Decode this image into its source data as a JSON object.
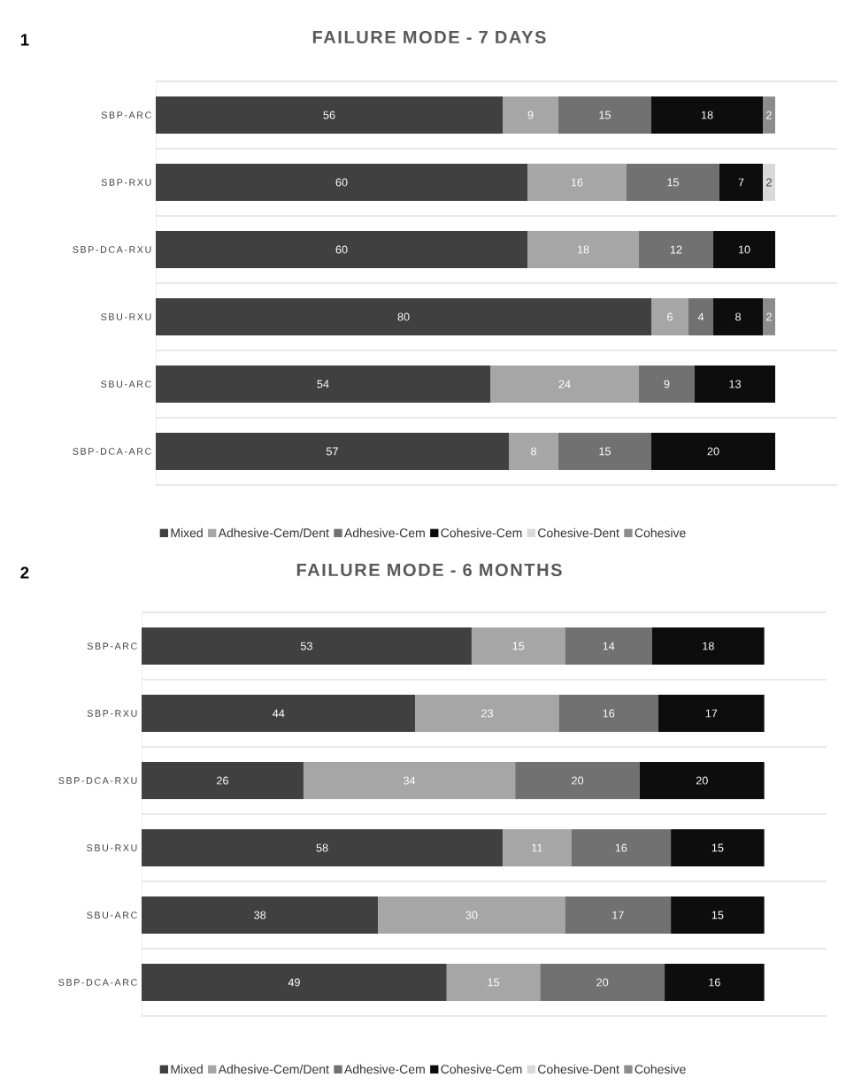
{
  "chart_data": [
    {
      "type": "bar",
      "orientation": "horizontal",
      "stacked": true,
      "title": "FAILURE MODE - 7 DAYS",
      "annotations": [
        "1"
      ],
      "categories": [
        "SBP-ARC",
        "SBP-RXU",
        "SBP-DCA-RXU",
        "SBU-RXU",
        "SBU-ARC",
        "SBP-DCA-ARC"
      ],
      "series": [
        {
          "name": "Mixed",
          "color": "#404040",
          "values": [
            56,
            60,
            60,
            80,
            54,
            57
          ]
        },
        {
          "name": "Adhesive-Cem/Dent",
          "color": "#a6a6a6",
          "values": [
            9,
            16,
            18,
            6,
            24,
            8
          ]
        },
        {
          "name": "Adhesive-Cem",
          "color": "#717171",
          "values": [
            15,
            15,
            12,
            4,
            9,
            15
          ]
        },
        {
          "name": "Cohesive-Cem",
          "color": "#0d0d0d",
          "values": [
            18,
            7,
            10,
            8,
            13,
            20
          ]
        },
        {
          "name": "Cohesive-Dent",
          "color": "#d9d9d9",
          "values": [
            null,
            2,
            null,
            null,
            null,
            null
          ]
        },
        {
          "name": "Cohesive",
          "color": "#8c8c8c",
          "values": [
            2,
            null,
            null,
            2,
            null,
            null
          ]
        }
      ],
      "xlim": [
        0,
        110
      ],
      "tick_labels": "y",
      "grid": "y",
      "legend": "bottom",
      "data_labels": true
    },
    {
      "type": "bar",
      "orientation": "horizontal",
      "stacked": true,
      "title": "FAILURE MODE - 6 MONTHS",
      "annotations": [
        "2"
      ],
      "categories": [
        "SBP-ARC",
        "SBP-RXU",
        "SBP-DCA-RXU",
        "SBU-RXU",
        "SBU-ARC",
        "SBP-DCA-ARC"
      ],
      "series": [
        {
          "name": "Mixed",
          "color": "#404040",
          "values": [
            53,
            44,
            26,
            58,
            38,
            49
          ]
        },
        {
          "name": "Adhesive-Cem/Dent",
          "color": "#a6a6a6",
          "values": [
            15,
            23,
            34,
            11,
            30,
            15
          ]
        },
        {
          "name": "Adhesive-Cem",
          "color": "#717171",
          "values": [
            14,
            16,
            20,
            16,
            17,
            20
          ]
        },
        {
          "name": "Cohesive-Cem",
          "color": "#0d0d0d",
          "values": [
            18,
            17,
            20,
            15,
            15,
            16
          ]
        },
        {
          "name": "Cohesive-Dent",
          "color": "#d9d9d9",
          "values": [
            null,
            null,
            null,
            null,
            null,
            null
          ]
        },
        {
          "name": "Cohesive",
          "color": "#8c8c8c",
          "values": [
            null,
            null,
            null,
            null,
            null,
            null
          ]
        }
      ],
      "xlim": [
        0,
        110
      ],
      "tick_labels": "y",
      "grid": "y",
      "legend": "bottom",
      "data_labels": true
    }
  ]
}
